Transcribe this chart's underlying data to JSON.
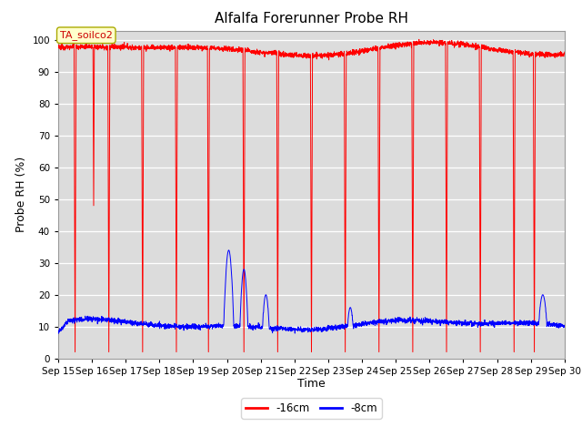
{
  "title": "Alfalfa Forerunner Probe RH",
  "xlabel": "Time",
  "ylabel": "Probe RH (%)",
  "ylim": [
    0,
    103
  ],
  "yticks": [
    0,
    10,
    20,
    30,
    40,
    50,
    60,
    70,
    80,
    90,
    100
  ],
  "legend_label1": "-16cm",
  "legend_label2": "-8cm",
  "color_red": "#ff0000",
  "color_blue": "#0000ff",
  "bg_color": "#dcdcdc",
  "annotation_text": "TA_soilco2",
  "annotation_box_color": "#ffffcc",
  "annotation_box_edge": "#cccc00",
  "title_fontsize": 11,
  "axis_label_fontsize": 9,
  "tick_fontsize": 7.5,
  "xtick_labels": [
    "Sep 15",
    "Sep 16",
    "Sep 17",
    "Sep 18",
    "Sep 19",
    "Sep 20",
    "Sep 21",
    "Sep 22",
    "Sep 23",
    "Sep 24",
    "Sep 25",
    "Sep 26",
    "Sep 27",
    "Sep 28",
    "Sep 29",
    "Sep 30"
  ]
}
